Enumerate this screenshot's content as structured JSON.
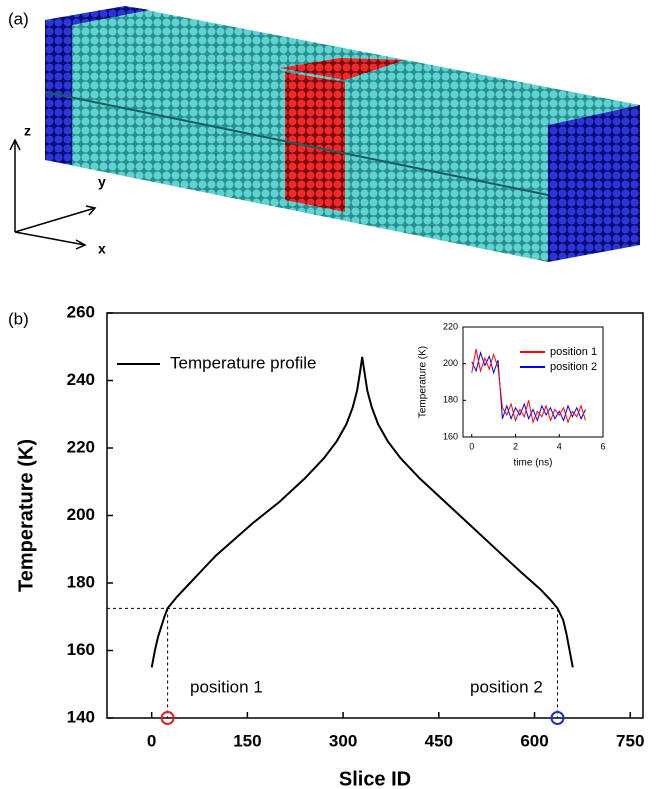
{
  "panel_a": {
    "label": "(a)",
    "axis_labels": [
      "z",
      "y",
      "x"
    ]
  },
  "chart_data": [
    {
      "type": "line",
      "label": "(b)",
      "xlabel": "Slice ID",
      "ylabel": "Temperature (K)",
      "xlim": [
        -70,
        770
      ],
      "xticks": [
        0,
        150,
        300,
        450,
        600,
        750
      ],
      "ylim": [
        140,
        260
      ],
      "yticks": [
        140,
        160,
        180,
        200,
        220,
        240,
        260
      ],
      "series": [
        {
          "name": "Temperature profile",
          "color": "#000000",
          "x": [
            0,
            5,
            10,
            20,
            25,
            40,
            60,
            80,
            100,
            130,
            160,
            200,
            240,
            270,
            290,
            305,
            315,
            322,
            327,
            330,
            333,
            338,
            345,
            355,
            370,
            390,
            420,
            460,
            500,
            540,
            580,
            610,
            625,
            636,
            645,
            650,
            655,
            660
          ],
          "values": [
            155,
            160,
            164,
            170,
            172.5,
            176,
            180,
            184,
            188,
            193,
            198,
            204,
            211,
            217,
            222,
            227,
            232,
            237,
            243,
            247,
            243,
            237,
            232,
            227,
            222,
            217,
            211,
            204,
            197,
            190,
            183,
            178,
            175,
            172.5,
            169,
            165,
            160,
            155
          ]
        }
      ],
      "reference_y": 172.5,
      "markers": [
        {
          "x": 25,
          "y": 140,
          "color": "#e02020"
        },
        {
          "x": 636,
          "y": 140,
          "color": "#2030d0"
        }
      ],
      "annotations": [
        "position 1",
        "position 2"
      ]
    },
    {
      "type": "line",
      "xlabel": "time (ns)",
      "ylabel": "Temperature (K)",
      "xlim": [
        -0.4,
        6
      ],
      "xticks": [
        0,
        2,
        4,
        6
      ],
      "ylim": [
        160,
        220
      ],
      "yticks": [
        160,
        180,
        200,
        220
      ],
      "series": [
        {
          "name": "position 1",
          "color": "#ff0000",
          "x": [
            0,
            0.2,
            0.4,
            0.6,
            0.8,
            1.0,
            1.2,
            1.4,
            1.6,
            1.8,
            2.0,
            2.2,
            2.4,
            2.6,
            2.8,
            3.0,
            3.2,
            3.4,
            3.6,
            3.8,
            4.0,
            4.2,
            4.4,
            4.6,
            4.8,
            5.0,
            5.2
          ],
          "values": [
            195,
            208,
            196,
            203,
            197,
            205,
            198,
            176,
            172,
            178,
            169,
            175,
            171,
            180,
            168,
            174,
            171,
            177,
            169,
            175,
            172,
            176,
            168,
            174,
            171,
            177,
            169
          ]
        },
        {
          "name": "position 2",
          "color": "#0000ff",
          "x": [
            0,
            0.2,
            0.4,
            0.6,
            0.8,
            1.0,
            1.2,
            1.4,
            1.6,
            1.8,
            2.0,
            2.2,
            2.4,
            2.6,
            2.8,
            3.0,
            3.2,
            3.4,
            3.6,
            3.8,
            4.0,
            4.2,
            4.4,
            4.6,
            4.8,
            5.0,
            5.2
          ],
          "values": [
            201,
            196,
            206,
            199,
            204,
            195,
            202,
            170,
            177,
            170,
            176,
            172,
            178,
            170,
            175,
            169,
            177,
            172,
            176,
            170,
            174,
            169,
            177,
            171,
            176,
            170,
            175
          ]
        }
      ]
    }
  ]
}
